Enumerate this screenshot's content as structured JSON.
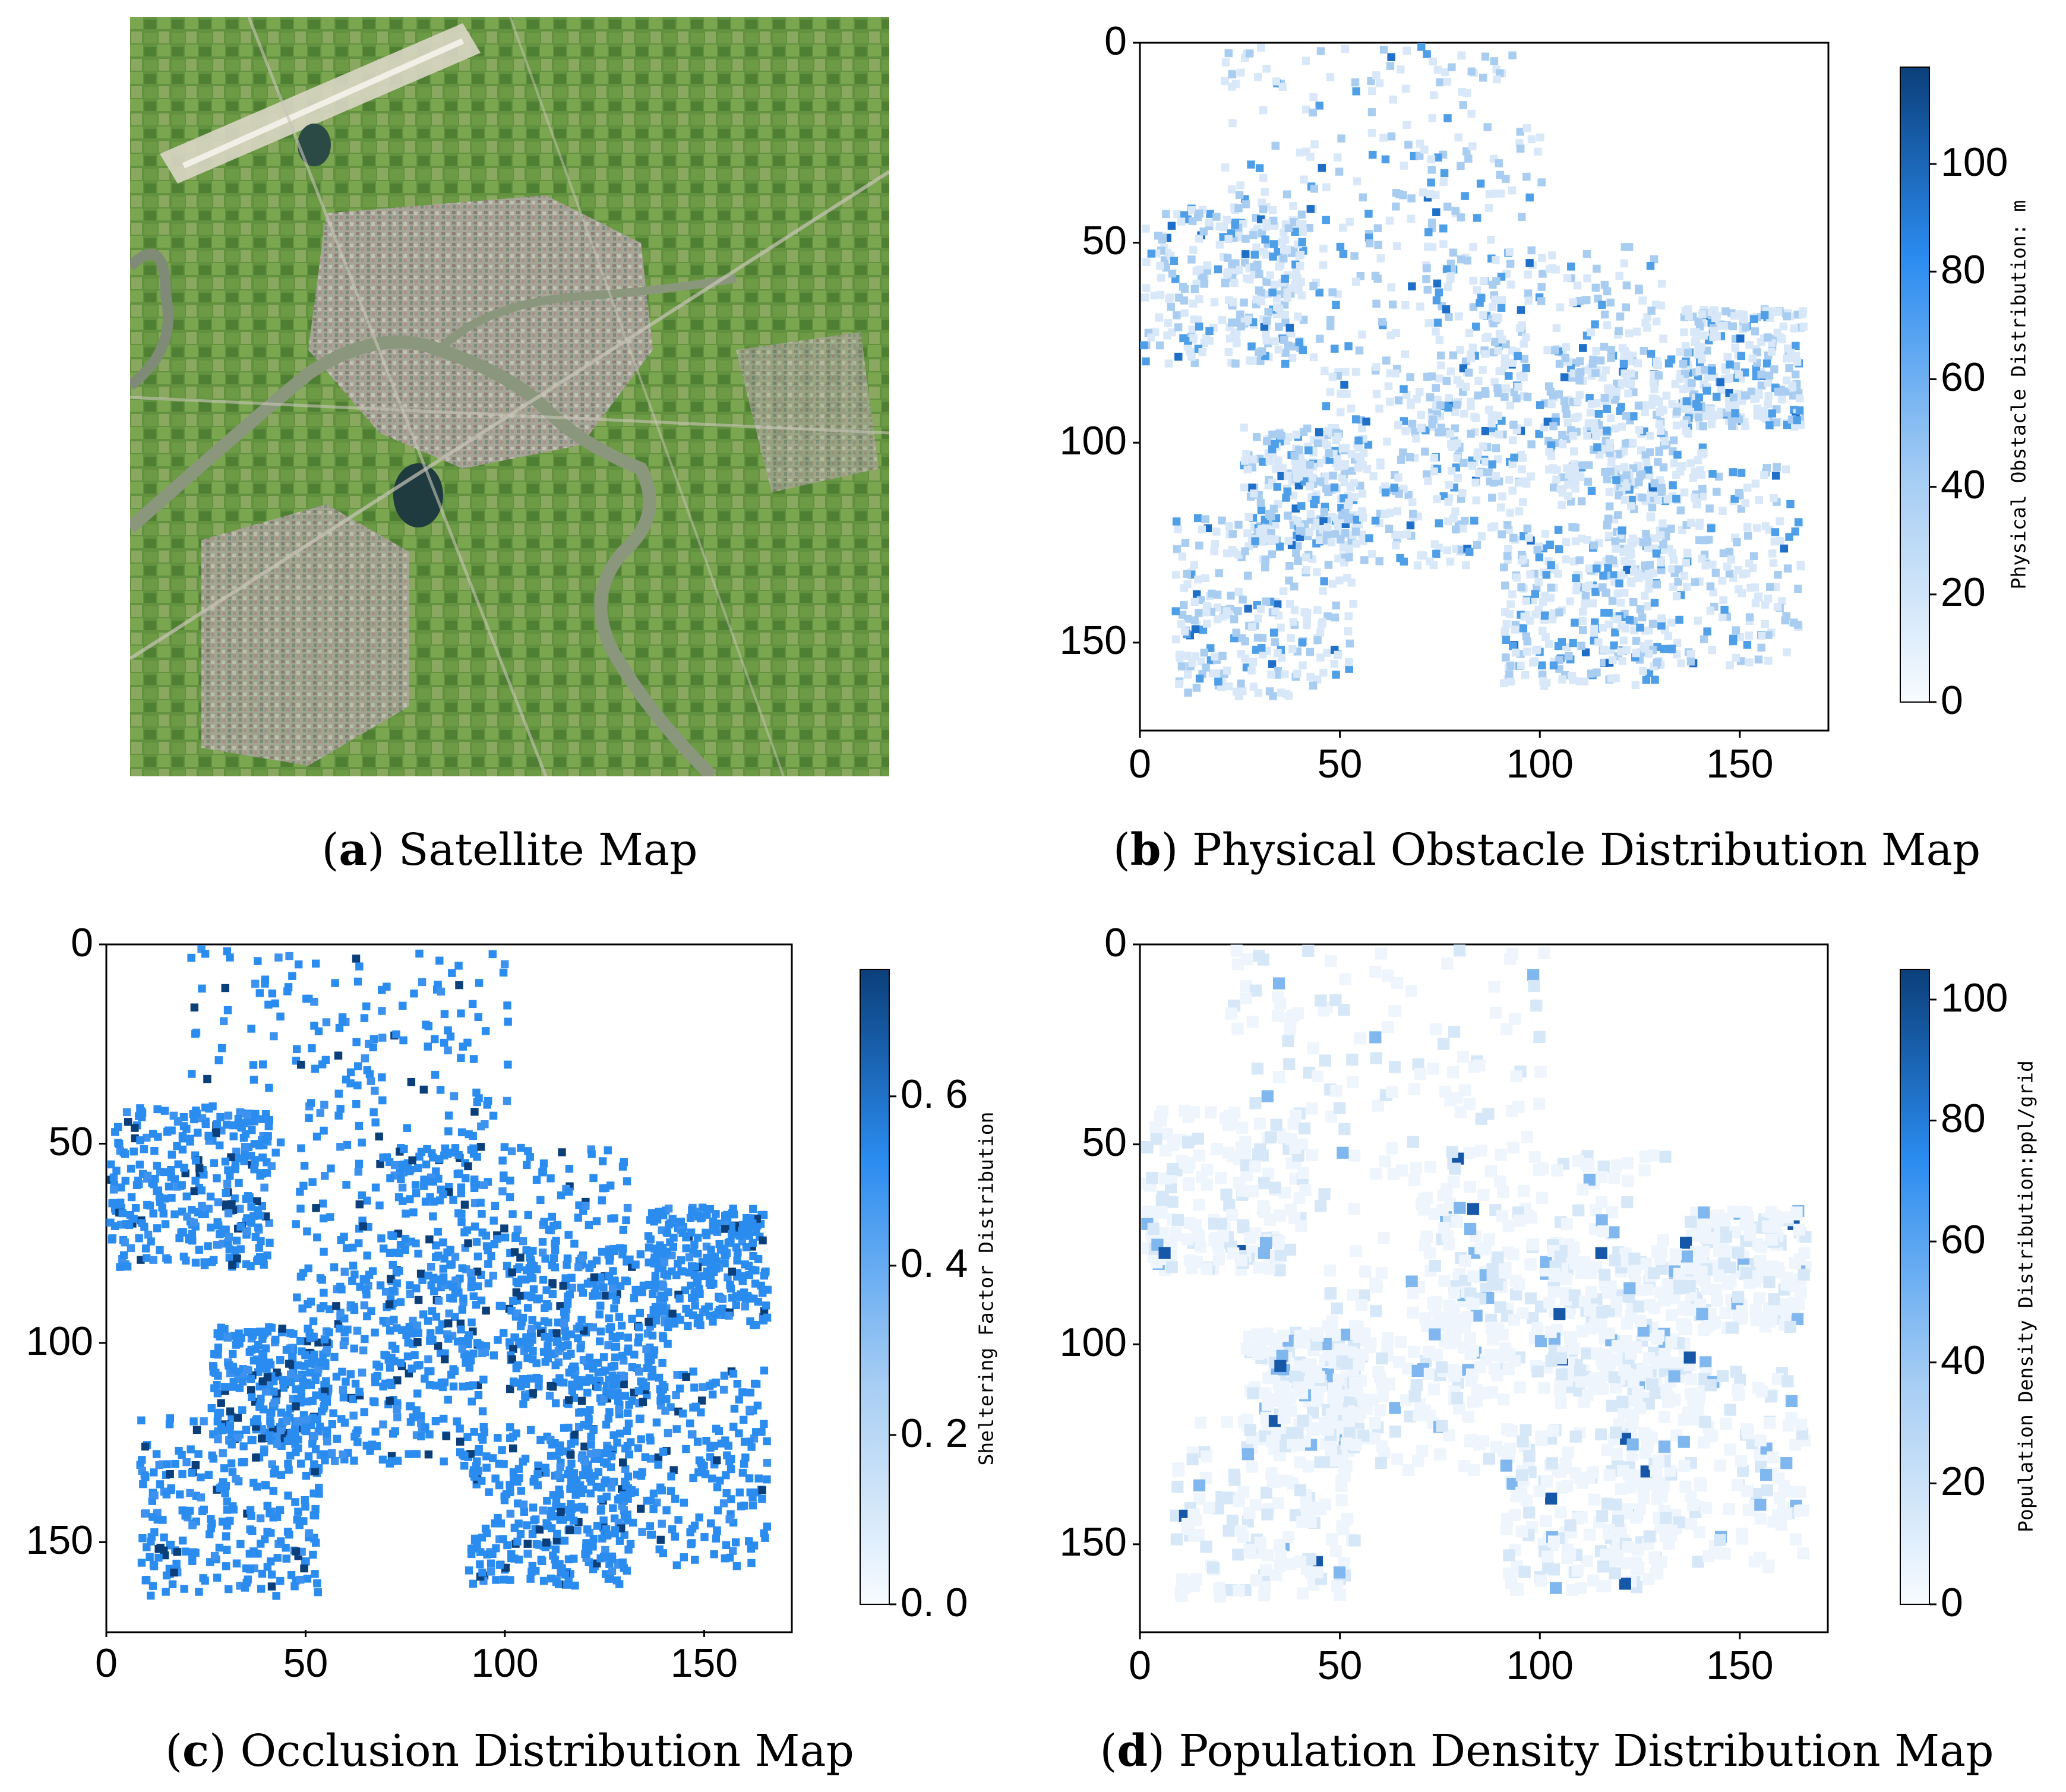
{
  "panels": [
    {
      "letter": "a",
      "title": "Satellite Map"
    },
    {
      "letter": "b",
      "title": "Physical Obstacle Distribution Map",
      "x_ticks": [
        "0",
        "50",
        "100",
        "150"
      ],
      "y_ticks": [
        "0",
        "50",
        "100",
        "150"
      ],
      "colorbar_label": "Physical Obstacle Distribution: m",
      "colorbar_ticks": [
        "0",
        "20",
        "40",
        "60",
        "80",
        "100"
      ],
      "colorbar_max": 118
    },
    {
      "letter": "c",
      "title": "Occlusion Distribution Map",
      "x_ticks": [
        "0",
        "50",
        "100",
        "150"
      ],
      "y_ticks": [
        "0",
        "50",
        "100",
        "150"
      ],
      "colorbar_label": "Sheltering Factor Distribution",
      "colorbar_ticks": [
        "0. 0",
        "0. 2",
        "0. 4",
        "0. 6"
      ],
      "colorbar_max": 0.75
    },
    {
      "letter": "d",
      "title": "Population Density Distribution Map",
      "x_ticks": [
        "0",
        "50",
        "100",
        "150"
      ],
      "y_ticks": [
        "0",
        "50",
        "100",
        "150"
      ],
      "colorbar_label": "Population Density Distribution:ppl/grid",
      "colorbar_ticks": [
        "0",
        "20",
        "40",
        "60",
        "80",
        "100"
      ],
      "colorbar_max": 105
    }
  ],
  "colors": {
    "cmap_low": "#f7fbff",
    "cmap_mid": "#2b8cf0",
    "cmap_high": "#0b3f7a",
    "field": "#5f8f3e",
    "river": "#8c9a7d",
    "urban": "#a8a49b"
  }
}
